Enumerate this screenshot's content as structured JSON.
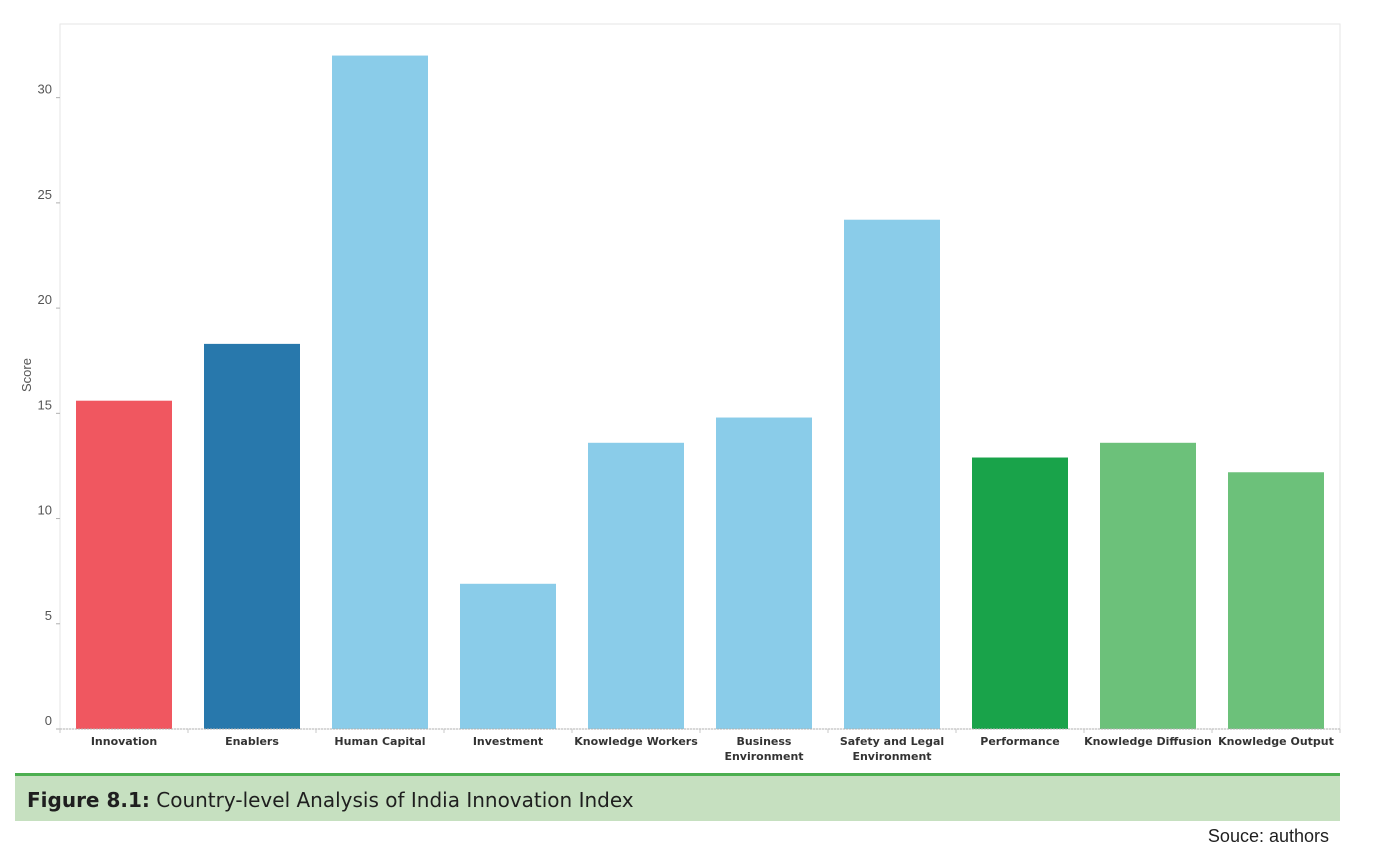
{
  "chart_data": {
    "type": "bar",
    "ylabel": "Score",
    "ylim": [
      0,
      33.5
    ],
    "yticks": [
      0,
      5,
      10,
      15,
      20,
      25,
      30
    ],
    "grid": false,
    "categories": [
      [
        "Innovation"
      ],
      [
        "Enablers"
      ],
      [
        "Human Capital"
      ],
      [
        "Investment"
      ],
      [
        "Knowledge Workers"
      ],
      [
        "Business",
        "Environment"
      ],
      [
        "Safety and Legal",
        "Environment"
      ],
      [
        "Performance"
      ],
      [
        "Knowledge Diffusion"
      ],
      [
        "Knowledge Output"
      ]
    ],
    "values": [
      15.6,
      18.3,
      32.0,
      6.9,
      13.6,
      14.8,
      24.2,
      12.9,
      13.6,
      12.2
    ],
    "colors": [
      "#f05760",
      "#2878ac",
      "#8acce9",
      "#8acce9",
      "#8acce9",
      "#8acce9",
      "#8acce9",
      "#19a34a",
      "#6cc17a",
      "#6cc17a"
    ]
  },
  "caption": {
    "label": "Figure 8.1:",
    "text": " Country-level Analysis of India Innovation Index"
  },
  "source": "Souce: authors"
}
